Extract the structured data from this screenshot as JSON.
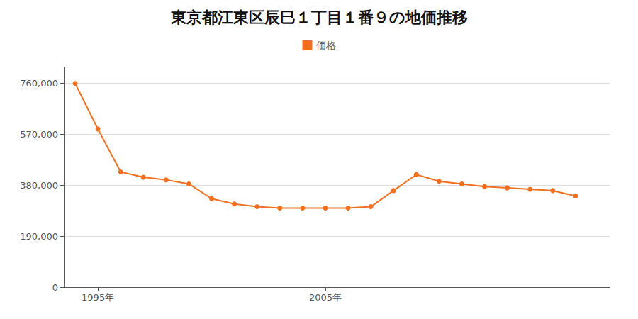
{
  "chart_data": {
    "type": "line",
    "title": "東京都江東区辰巳１丁目１番９の地価推移",
    "x": [
      1994,
      1995,
      1996,
      1997,
      1998,
      1999,
      2000,
      2001,
      2002,
      2003,
      2004,
      2005,
      2006,
      2007,
      2008,
      2009,
      2010,
      2011,
      2012,
      2013,
      2014,
      2015,
      2016
    ],
    "series": [
      {
        "name": "価格",
        "color": "#f07020",
        "marker": "circle",
        "values": [
          760000,
          590000,
          430000,
          410000,
          400000,
          385000,
          330000,
          310000,
          300000,
          295000,
          295000,
          295000,
          295000,
          300000,
          360000,
          420000,
          395000,
          385000,
          375000,
          370000,
          365000,
          360000,
          340000
        ]
      }
    ],
    "xlim": [
      1993.5,
      2017.5
    ],
    "xticks": [
      {
        "value": 1995,
        "label": "1995年"
      },
      {
        "value": 2005,
        "label": "2005年"
      }
    ],
    "ylim": [
      0,
      820000
    ],
    "yticks": [
      0,
      {
        "value": 190000,
        "label": "190,000"
      },
      {
        "value": 380000,
        "label": "380,000"
      },
      {
        "value": 570000,
        "label": "570,000"
      },
      {
        "value": 760000,
        "label": "760,000"
      }
    ],
    "grid": "y",
    "legend": "top"
  }
}
